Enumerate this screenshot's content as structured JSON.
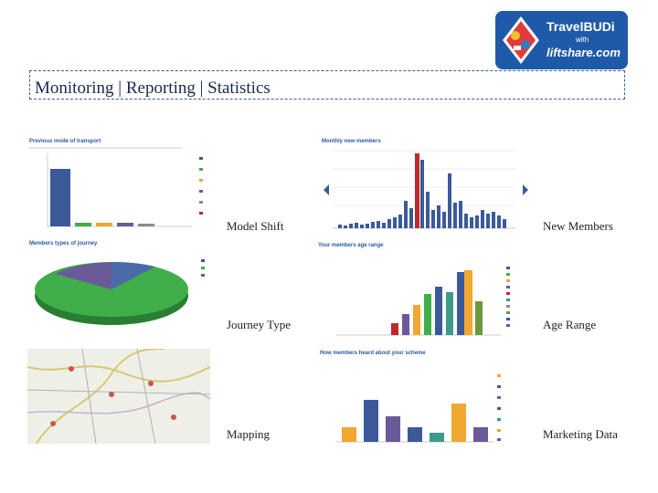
{
  "logo": {
    "brand_line1": "TravelBUDi",
    "brand_line2": "with",
    "brand_line3": "liftshare.com",
    "brand_color": "#1f5aa8"
  },
  "header": {
    "title": "Monitoring | Reporting | Statistics"
  },
  "captions": {
    "model_shift": "Model Shift",
    "new_members": "New Members",
    "journey_type": "Journey Type",
    "age_range": "Age Range",
    "mapping": "Mapping",
    "marketing_data": "Marketing Data"
  },
  "thumbnails": {
    "model_shift": {
      "title": "Previous mode of transport"
    },
    "new_members": {
      "title": "Monthly new members"
    },
    "journey_type": {
      "title": "Members types of journey"
    },
    "age_range": {
      "title": "Your members age range"
    },
    "marketing": {
      "title": "How members heard about your scheme"
    }
  },
  "colors": {
    "accent": "#3a5d94",
    "bar_blue": "#3c5a9a",
    "bar_red": "#c0282d",
    "pie_green": "#3fae49",
    "pie_purple": "#6a5a9a"
  }
}
